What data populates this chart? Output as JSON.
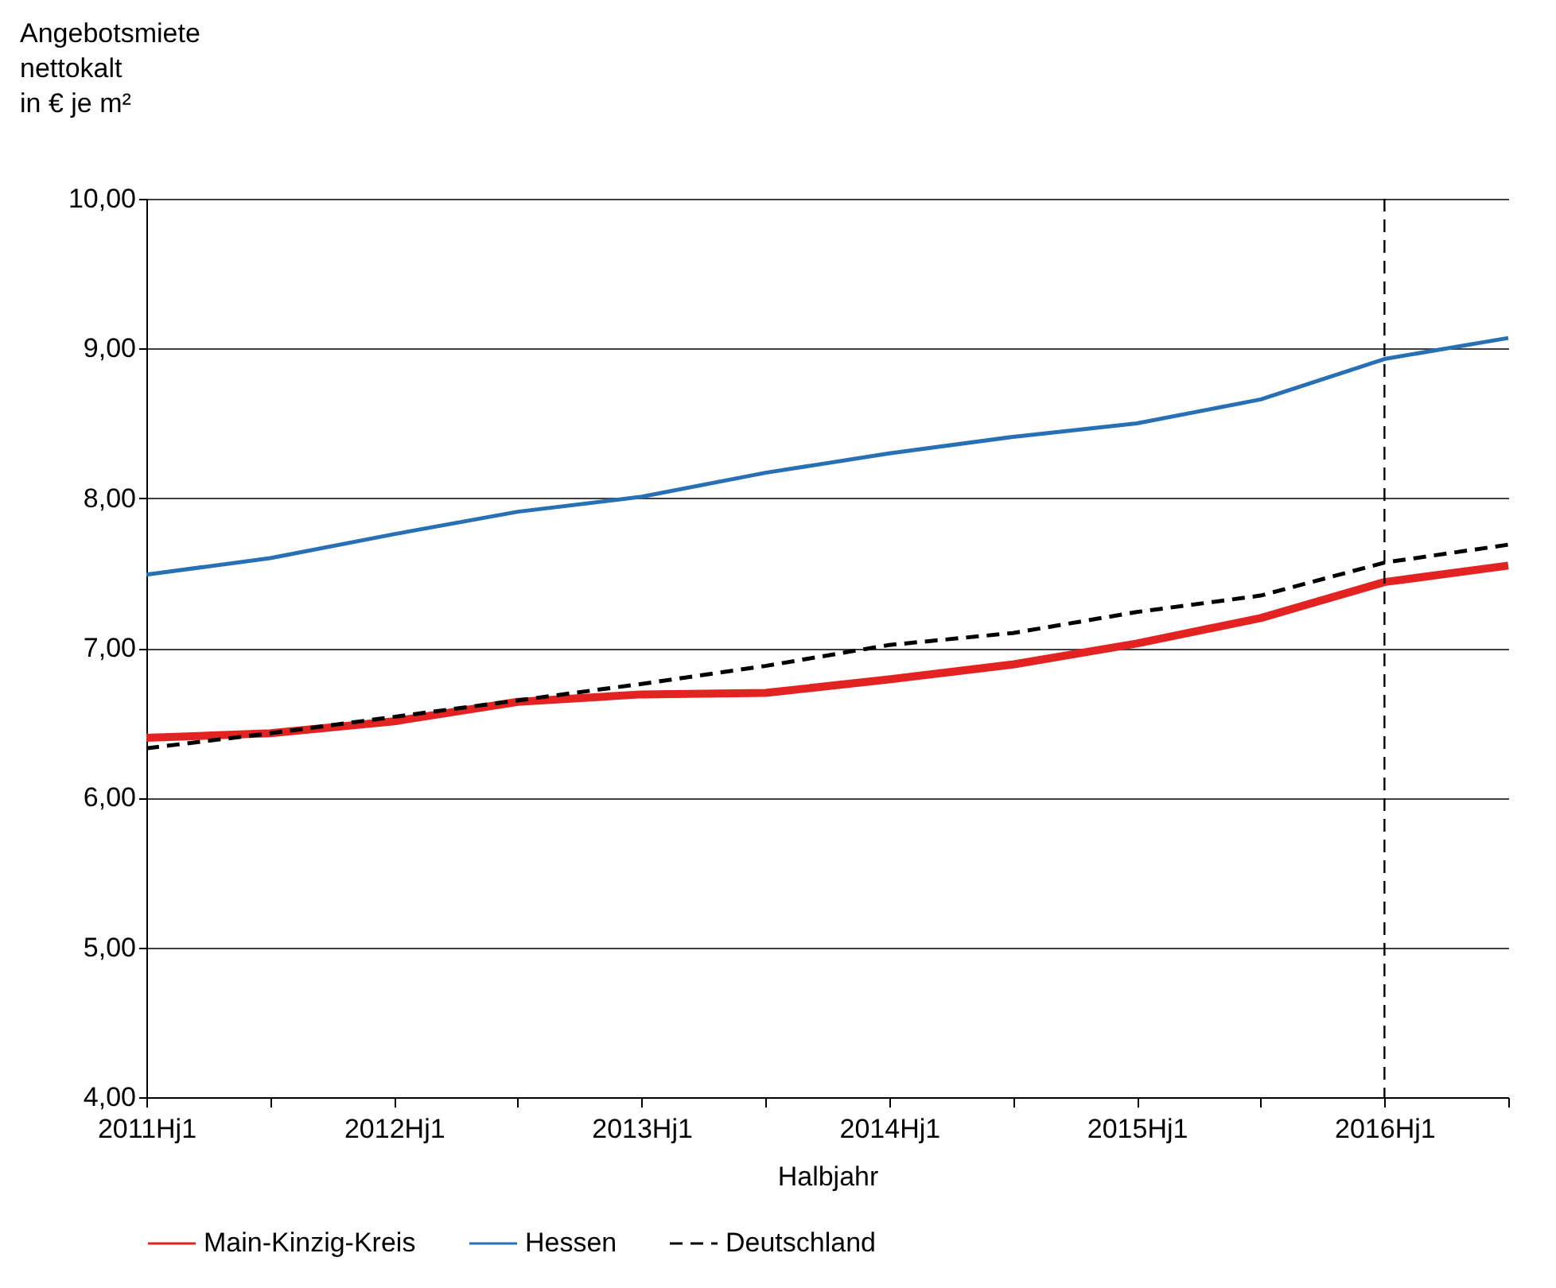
{
  "chart_data": {
    "type": "line",
    "xlabel": "Halbjahr",
    "ylabel": "Angebotsmiete\nnettokalt\nin € je m²",
    "categories": [
      "2011Hj1",
      null,
      "2012Hj1",
      null,
      "2013Hj1",
      null,
      "2014Hj1",
      null,
      "2015Hj1",
      null,
      "2016Hj1",
      null
    ],
    "series": [
      {
        "name": "Main-Kinzig-Kreis",
        "color": "#e32322",
        "line_style": "solid",
        "values": [
          6.4,
          6.43,
          6.51,
          6.64,
          6.69,
          6.7,
          6.79,
          6.89,
          7.03,
          7.2,
          7.44,
          7.55
        ]
      },
      {
        "name": "Hessen",
        "color": "#2870b4",
        "line_style": "solid",
        "values": [
          7.49,
          7.6,
          7.76,
          7.91,
          8.01,
          8.17,
          8.3,
          8.41,
          8.5,
          8.66,
          8.93,
          9.07
        ]
      },
      {
        "name": "Deutschland",
        "color": "#000000",
        "line_style": "dashed",
        "values": [
          6.33,
          6.43,
          6.54,
          6.65,
          6.76,
          6.88,
          7.02,
          7.1,
          7.24,
          7.35,
          7.57,
          7.69
        ]
      }
    ],
    "ylim": [
      4,
      10
    ],
    "yticks": [
      {
        "value": 4,
        "label": "4,00"
      },
      {
        "value": 5,
        "label": "5,00"
      },
      {
        "value": 6,
        "label": "6,00"
      },
      {
        "value": 7,
        "label": "7,00"
      },
      {
        "value": 8,
        "label": "8,00"
      },
      {
        "value": 9,
        "label": "9,00"
      },
      {
        "value": 10,
        "label": "10,00"
      }
    ],
    "grid": "y",
    "legend": "bottom",
    "marker": "none",
    "ref_lines": [
      {
        "axis": "x",
        "value": "2016Hj1",
        "color": "#000000",
        "line_style": "dashed"
      }
    ]
  }
}
